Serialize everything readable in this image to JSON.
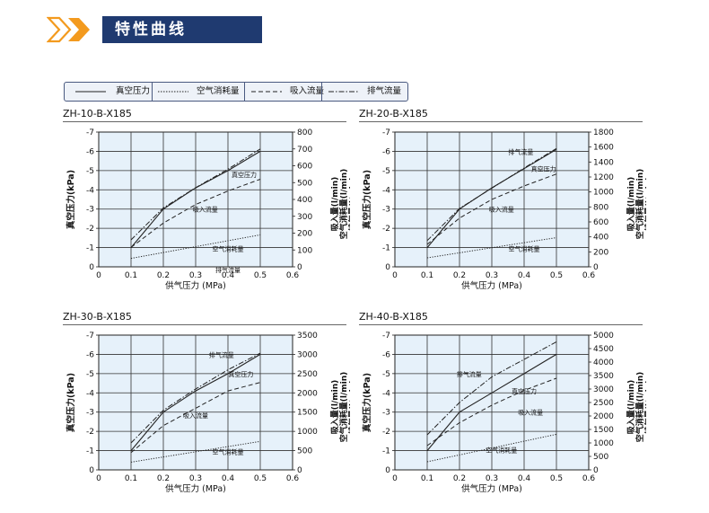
{
  "header": {
    "title": "特性曲线",
    "accent_color": "#f39a1e",
    "box_color": "#1f3a70"
  },
  "legend": {
    "items": [
      {
        "label": "真空压力",
        "dash": "solid"
      },
      {
        "label": "空气消耗量",
        "dash": "dotted"
      },
      {
        "label": "吸入流量",
        "dash": "longdash"
      },
      {
        "label": "排气流量",
        "dash": "dashdot"
      }
    ]
  },
  "chart_data": [
    {
      "type": "line",
      "title": "ZH-10-B-X185",
      "xlabel": "供气压力 (MPa)",
      "ylabel_left": "真空压力(kPa)",
      "ylabel_right": [
        "吸入量(l/min)",
        "空气消耗量(l/min)",
        "排气量(l/min)"
      ],
      "x_ticks": [
        "0",
        "0.1",
        "0.2",
        "0.3",
        "0.4",
        "0.5",
        "0.6"
      ],
      "xlim": [
        0,
        0.6
      ],
      "left_ticks": [
        "-7",
        "-6",
        "-5",
        "-4",
        "-3",
        "-2",
        "-1",
        "0"
      ],
      "left_lim": [
        0,
        -7
      ],
      "right_ticks": [
        "0",
        "100",
        "200",
        "300",
        "400",
        "500",
        "600",
        "700",
        "800"
      ],
      "right_lim": [
        0,
        800
      ],
      "grid": true,
      "series": [
        {
          "name": "排气流量",
          "axis": "right",
          "dash": "dashdot",
          "x": [
            0.1,
            0.2,
            0.3,
            0.4,
            0.5
          ],
          "y": [
            160,
            350,
            470,
            580,
            700
          ],
          "label_at": [
            0.4,
            0.15
          ]
        },
        {
          "name": "真空压力",
          "axis": "left",
          "dash": "solid",
          "x": [
            0.1,
            0.2,
            0.3,
            0.4,
            0.5
          ],
          "y": [
            -1.0,
            -3.0,
            -4.1,
            -5.0,
            -6.0
          ],
          "label_at": [
            0.45,
            -4.8
          ]
        },
        {
          "name": "吸入流量",
          "axis": "right",
          "dash": "longdash",
          "x": [
            0.1,
            0.2,
            0.3,
            0.4,
            0.5
          ],
          "y": [
            115,
            260,
            370,
            450,
            520
          ],
          "label_at": [
            0.33,
            -3.0
          ]
        },
        {
          "name": "空气消耗量",
          "axis": "right",
          "dash": "dotted",
          "x": [
            0.1,
            0.5
          ],
          "y": [
            50,
            190
          ],
          "label_at": [
            0.4,
            -0.95
          ]
        }
      ]
    },
    {
      "type": "line",
      "title": "ZH-20-B-X185",
      "xlabel": "供气压力 (MPa)",
      "ylabel_left": "真空压力(kPa)",
      "ylabel_right": [
        "吸入量(l/min)",
        "空气消耗量(l/min)",
        "排气量(l/min)"
      ],
      "x_ticks": [
        "0",
        "0.1",
        "0.2",
        "0.3",
        "0.4",
        "0.5",
        "0.6"
      ],
      "xlim": [
        0,
        0.6
      ],
      "left_ticks": [
        "-7",
        "-6",
        "-5",
        "-4",
        "-3",
        "-2",
        "-1",
        "0"
      ],
      "left_lim": [
        0,
        -7
      ],
      "right_ticks": [
        "0",
        "200",
        "400",
        "600",
        "800",
        "1000",
        "1200",
        "1400",
        "1600",
        "1800"
      ],
      "right_lim": [
        0,
        1800
      ],
      "grid": true,
      "series": [
        {
          "name": "排气流量",
          "axis": "right",
          "dash": "dashdot",
          "x": [
            0.1,
            0.2,
            0.3,
            0.4,
            0.5
          ],
          "y": [
            350,
            780,
            1050,
            1320,
            1580
          ],
          "label_at": [
            0.39,
            -6.0
          ]
        },
        {
          "name": "真空压力",
          "axis": "left",
          "dash": "solid",
          "x": [
            0.1,
            0.2,
            0.3,
            0.4,
            0.5
          ],
          "y": [
            -1.0,
            -3.0,
            -4.1,
            -5.1,
            -6.1
          ],
          "label_at": [
            0.46,
            -5.1
          ]
        },
        {
          "name": "吸入流量",
          "axis": "right",
          "dash": "longdash",
          "x": [
            0.1,
            0.2,
            0.3,
            0.4,
            0.5
          ],
          "y": [
            300,
            650,
            900,
            1080,
            1240
          ],
          "label_at": [
            0.33,
            -3.0
          ]
        },
        {
          "name": "空气消耗量",
          "axis": "right",
          "dash": "dotted",
          "x": [
            0.1,
            0.5
          ],
          "y": [
            120,
            390
          ],
          "label_at": [
            0.4,
            -0.95
          ]
        }
      ]
    },
    {
      "type": "line",
      "title": "ZH-30-B-X185",
      "xlabel": "供气压力 (MPa)",
      "ylabel_left": "真空压力(kPa)",
      "ylabel_right": [
        "吸入量(l/min)",
        "空气消耗量(l/min)",
        "排气量(l/min)"
      ],
      "x_ticks": [
        "0",
        "0.1",
        "0.2",
        "0.3",
        "0.4",
        "0.5",
        "0.6"
      ],
      "xlim": [
        0,
        0.6
      ],
      "left_ticks": [
        "-7",
        "-6",
        "-5",
        "-4",
        "-3",
        "-2",
        "-1",
        "0"
      ],
      "left_lim": [
        0,
        -7
      ],
      "right_ticks": [
        "0",
        "500",
        "1000",
        "1500",
        "2000",
        "2500",
        "3000",
        "3500"
      ],
      "right_lim": [
        0,
        3500
      ],
      "grid": true,
      "series": [
        {
          "name": "排气流量",
          "axis": "right",
          "dash": "dashdot",
          "x": [
            0.1,
            0.2,
            0.3,
            0.4,
            0.5
          ],
          "y": [
            700,
            1550,
            2100,
            2600,
            3030
          ],
          "label_at": [
            0.38,
            -6.0
          ]
        },
        {
          "name": "真空压力",
          "axis": "left",
          "dash": "solid",
          "x": [
            0.1,
            0.2,
            0.3,
            0.4,
            0.5
          ],
          "y": [
            -1.0,
            -3.0,
            -4.1,
            -5.0,
            -6.0
          ],
          "label_at": [
            0.44,
            -5.0
          ]
        },
        {
          "name": "吸入流量",
          "axis": "right",
          "dash": "longdash",
          "x": [
            0.1,
            0.2,
            0.3,
            0.4,
            0.5
          ],
          "y": [
            450,
            1150,
            1600,
            2050,
            2270
          ],
          "label_at": [
            0.3,
            -2.85
          ]
        },
        {
          "name": "空气消耗量",
          "axis": "right",
          "dash": "dotted",
          "x": [
            0.1,
            0.5
          ],
          "y": [
            200,
            740
          ],
          "label_at": [
            0.4,
            -0.95
          ]
        }
      ]
    },
    {
      "type": "line",
      "title": "ZH-40-B-X185",
      "xlabel": "供气压力 (MPa)",
      "ylabel_left": "真空压力(kPa)",
      "ylabel_right": [
        "吸入量(l/min)",
        "空气消耗量(l/min)",
        "排气量(l/min)"
      ],
      "x_ticks": [
        "0",
        "0.1",
        "0.2",
        "0.3",
        "0.4",
        "0.5",
        "0.6"
      ],
      "xlim": [
        0,
        0.6
      ],
      "left_ticks": [
        "-7",
        "-6",
        "-5",
        "-4",
        "-3",
        "-2",
        "-1",
        "0"
      ],
      "left_lim": [
        0,
        -7
      ],
      "right_ticks": [
        "0",
        "500",
        "1000",
        "1500",
        "2000",
        "2500",
        "3000",
        "3500",
        "4000",
        "4500",
        "5000"
      ],
      "right_lim": [
        0,
        5000
      ],
      "grid": true,
      "series": [
        {
          "name": "排气流量",
          "axis": "right",
          "dash": "dashdot",
          "x": [
            0.1,
            0.2,
            0.3,
            0.4,
            0.5
          ],
          "y": [
            1300,
            2500,
            3450,
            4100,
            4750
          ],
          "label_at": [
            0.23,
            -5.0
          ]
        },
        {
          "name": "真空压力",
          "axis": "left",
          "dash": "solid",
          "x": [
            0.1,
            0.2,
            0.3,
            0.4,
            0.5
          ],
          "y": [
            -1.0,
            -3.0,
            -4.0,
            -5.0,
            -6.0
          ],
          "label_at": [
            0.4,
            -4.1
          ]
        },
        {
          "name": "吸入流量",
          "axis": "right",
          "dash": "longdash",
          "x": [
            0.1,
            0.2,
            0.3,
            0.4,
            0.5
          ],
          "y": [
            900,
            1750,
            2400,
            2950,
            3400
          ],
          "label_at": [
            0.42,
            -3.0
          ]
        },
        {
          "name": "空气消耗量",
          "axis": "right",
          "dash": "dotted",
          "x": [
            0.1,
            0.5
          ],
          "y": [
            300,
            1320
          ],
          "label_at": [
            0.33,
            -1.05
          ]
        }
      ]
    }
  ]
}
